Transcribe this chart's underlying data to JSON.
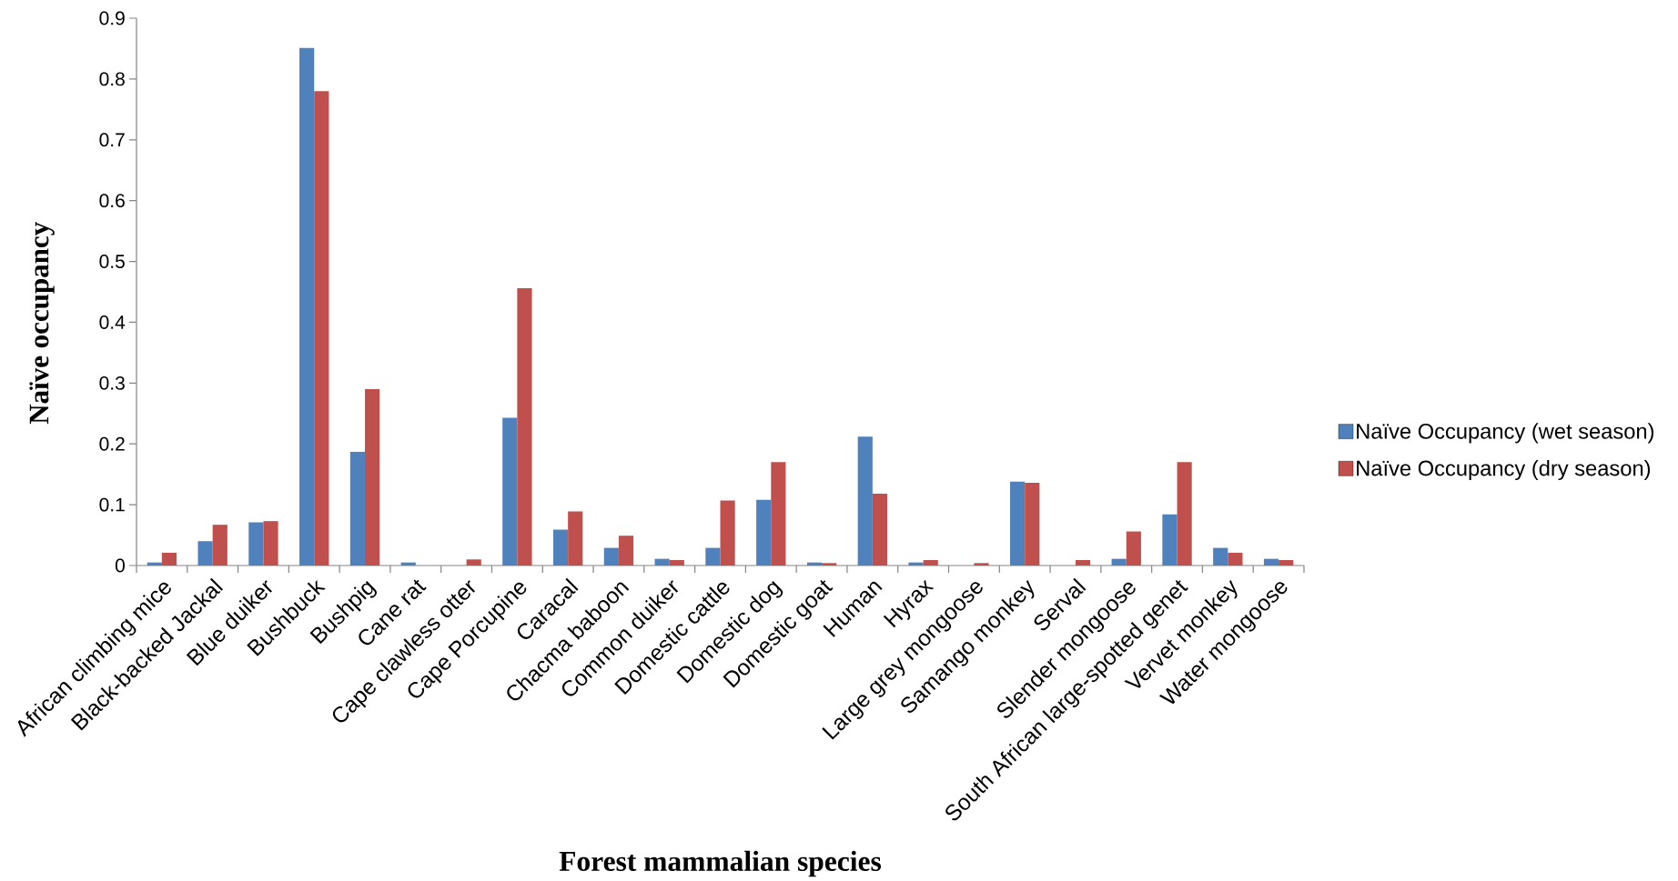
{
  "chart_data": {
    "type": "bar",
    "xlabel": "Forest mammalian species",
    "ylabel": "Naïve occupancy",
    "categories": [
      "African climbing mice",
      "Black-backed Jackal",
      "Blue duiker",
      "Bushbuck",
      "Bushpig",
      "Cane rat",
      "Cape clawless otter",
      "Cape Porcupine",
      "Caracal",
      "Chacma baboon",
      "Common duiker",
      "Domestic cattle",
      "Domestic dog",
      "Domestic goat",
      "Human",
      "Hyrax",
      "Large grey mongoose",
      "Samango monkey",
      "Serval",
      "Slender mongoose",
      "South African large-spotted genet",
      "Vervet monkey",
      "Water mongoose"
    ],
    "series": [
      {
        "name": "Naïve Occupancy (wet season)",
        "color": "#4f81bd",
        "values": [
          0.005,
          0.04,
          0.071,
          0.851,
          0.187,
          0.005,
          0,
          0.243,
          0.059,
          0.029,
          0.011,
          0.029,
          0.108,
          0.005,
          0.212,
          0.005,
          0,
          0.138,
          0,
          0.011,
          0.084,
          0.029,
          0.011
        ]
      },
      {
        "name": "Naïve Occupancy (dry season)",
        "color": "#c0504d",
        "values": [
          0.021,
          0.067,
          0.073,
          0.78,
          0.29,
          0,
          0.01,
          0.456,
          0.089,
          0.049,
          0.009,
          0.107,
          0.17,
          0.004,
          0.118,
          0.009,
          0.004,
          0.136,
          0.009,
          0.056,
          0.17,
          0.021,
          0.009
        ]
      }
    ],
    "ylim": [
      0,
      0.9
    ],
    "yticks": [
      0,
      0.1,
      0.2,
      0.3,
      0.4,
      0.5,
      0.6,
      0.7,
      0.8,
      0.9
    ],
    "legend": "right"
  }
}
